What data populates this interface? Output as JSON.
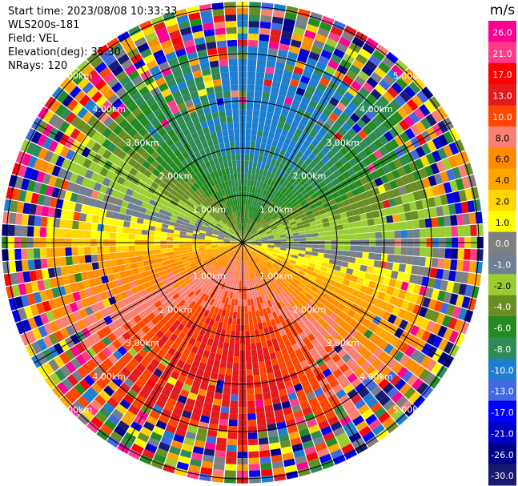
{
  "info": {
    "start_time": "Start time: 2023/08/08 10:33:33",
    "instrument": "WLS200s-181",
    "field": "Field: VEL",
    "elevation": "Elevation(deg): 35.30",
    "nrays": "NRays: 120"
  },
  "chart_data": {
    "type": "heatmap",
    "projection": "polar-ppi",
    "title": "",
    "field": "VEL",
    "elevation_deg": 35.3,
    "n_rays": 120,
    "range_rings_km": [
      1.0,
      2.0,
      3.0,
      4.0,
      5.0
    ],
    "range_ring_labels": [
      "1.00km",
      "2.00km",
      "3.00km",
      "4.00km",
      "5.00km"
    ],
    "max_range_km": 5.1,
    "colorbar": {
      "unit": "m/s",
      "tick_labels": [
        "26.0",
        "21.0",
        "17.0",
        "13.0",
        "10.0",
        "8.0",
        "6.0",
        "4.0",
        "2.0",
        "1.0",
        "0.0",
        "-1.0",
        "-2.0",
        "-4.0",
        "-6.0",
        "-8.0",
        "-10.0",
        "-13.0",
        "-17.0",
        "-21.0",
        "-26.0",
        "-30.0"
      ],
      "colors_top_to_bottom": [
        "#ff0090",
        "#ff3b8c",
        "#ff0000",
        "#e41a1c",
        "#ff4500",
        "#fa8072",
        "#ff8c00",
        "#ffa500",
        "#ffd700",
        "#ffff00",
        "#808080",
        "#708090",
        "#9acd32",
        "#6b8e23",
        "#228b22",
        "#2e8b57",
        "#1e7fd0",
        "#4169e1",
        "#0000ff",
        "#0000cd",
        "#00008b",
        "#191970"
      ]
    },
    "pattern": {
      "approaching_sector_deg": [
        -60,
        20
      ],
      "receding_sector_deg": [
        110,
        250
      ],
      "noise_begins_km": 4.1
    }
  }
}
